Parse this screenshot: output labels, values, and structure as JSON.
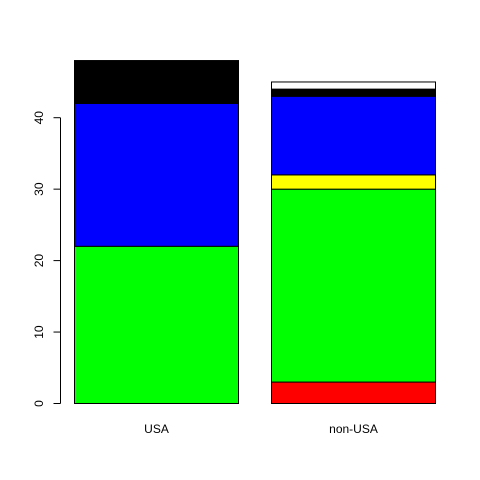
{
  "chart_data": {
    "type": "bar",
    "stacked": true,
    "categories": [
      "USA",
      "non-USA"
    ],
    "series": [
      {
        "color": "#ff0000",
        "values": [
          0,
          3
        ]
      },
      {
        "color": "#00ff00",
        "values": [
          22,
          27
        ]
      },
      {
        "color": "#ffff00",
        "values": [
          0,
          2
        ]
      },
      {
        "color": "#0000ff",
        "values": [
          20,
          11
        ]
      },
      {
        "color": "#000000",
        "values": [
          6,
          1
        ]
      },
      {
        "color": "#ffffff",
        "values": [
          0,
          1
        ]
      }
    ],
    "totals": [
      48,
      45
    ],
    "y_ticks": [
      0,
      10,
      20,
      30,
      40
    ],
    "y_tick_labels": [
      "0",
      "10",
      "20",
      "30",
      "40"
    ],
    "ylim": [
      0,
      48
    ],
    "title": "",
    "xlabel": "",
    "ylabel": "",
    "grid": false,
    "legend": "none"
  }
}
